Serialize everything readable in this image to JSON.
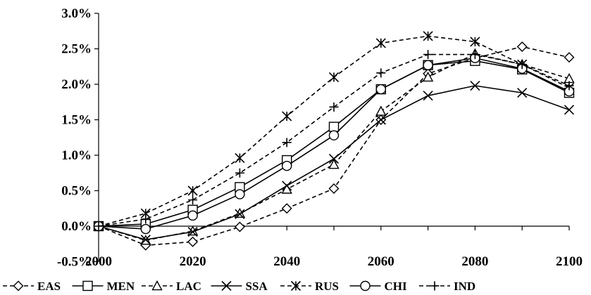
{
  "chart_data": {
    "type": "line",
    "x": [
      2000,
      2010,
      2020,
      2030,
      2040,
      2050,
      2060,
      2070,
      2080,
      2090,
      2100
    ],
    "ylim": [
      -0.5,
      3.0
    ],
    "xlim": [
      2000,
      2100
    ],
    "x_ticks": [
      "2000",
      "2020",
      "2040",
      "2060",
      "2080",
      "2100"
    ],
    "x_tick_values": [
      2000,
      2020,
      2040,
      2060,
      2080,
      2100
    ],
    "y_ticks": [
      "-0.5%",
      "0.0%",
      "0.5%",
      "1.0%",
      "1.5%",
      "2.0%",
      "2.5%",
      "3.0%"
    ],
    "y_tick_values": [
      -0.5,
      0.0,
      0.5,
      1.0,
      1.5,
      2.0,
      2.5,
      3.0
    ],
    "grid": false,
    "legend_position": "bottom",
    "series": [
      {
        "name": "EAS",
        "dash": "dashed",
        "marker": "diamond",
        "values": [
          0.0,
          -0.27,
          -0.22,
          -0.01,
          0.25,
          0.53,
          1.5,
          2.15,
          2.37,
          2.53,
          2.38
        ]
      },
      {
        "name": "MEN",
        "dash": "solid",
        "marker": "square",
        "values": [
          0.0,
          0.03,
          0.23,
          0.55,
          0.93,
          1.4,
          1.93,
          2.27,
          2.33,
          2.21,
          1.88
        ]
      },
      {
        "name": "LAC",
        "dash": "dashed",
        "marker": "triangle",
        "values": [
          0.0,
          -0.2,
          -0.07,
          0.18,
          0.52,
          0.87,
          1.62,
          2.1,
          2.43,
          2.28,
          2.08
        ]
      },
      {
        "name": "SSA",
        "dash": "solid",
        "marker": "x",
        "values": [
          0.0,
          -0.19,
          -0.08,
          0.17,
          0.57,
          0.95,
          1.5,
          1.84,
          1.98,
          1.88,
          1.64
        ]
      },
      {
        "name": "RUS",
        "dash": "dashed",
        "marker": "star",
        "values": [
          0.0,
          0.18,
          0.5,
          0.96,
          1.55,
          2.1,
          2.58,
          2.68,
          2.6,
          2.28,
          1.95
        ]
      },
      {
        "name": "CHI",
        "dash": "solid",
        "marker": "circle",
        "values": [
          0.0,
          -0.04,
          0.15,
          0.45,
          0.85,
          1.28,
          1.93,
          2.27,
          2.37,
          2.22,
          1.9
        ]
      },
      {
        "name": "IND",
        "dash": "dashed",
        "marker": "plus",
        "values": [
          0.0,
          0.1,
          0.37,
          0.75,
          1.18,
          1.68,
          2.16,
          2.42,
          2.42,
          2.28,
          1.98
        ]
      }
    ]
  }
}
